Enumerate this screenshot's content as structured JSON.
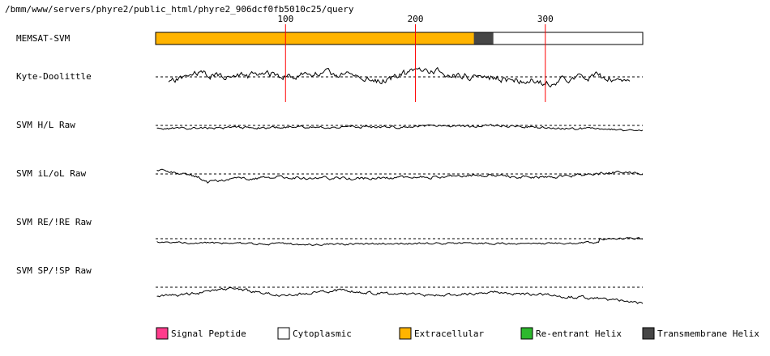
{
  "header": {
    "path": "/bmm/www/servers/phyre2/public_html/phyre2_906dcf0fb5010c25/query"
  },
  "colors": {
    "signal_peptide": "#ff3c8c",
    "cytoplasmic": "#ffffff",
    "extracellular": "#ffb400",
    "reentrant_helix": "#2db82d",
    "transmembrane_helix": "#464646",
    "ruler": "#ff0000",
    "trace": "#000000"
  },
  "chart_data": {
    "type": "line",
    "sequence_length": 375,
    "ticks": [
      100,
      200,
      300
    ],
    "tick_labels": [
      "100",
      "200",
      "300"
    ],
    "memsat": {
      "label": "MEMSAT-SVM",
      "segments": [
        {
          "start": 1,
          "end": 246,
          "type": "extracellular"
        },
        {
          "start": 246,
          "end": 261,
          "type": "transmembrane_helix"
        },
        {
          "start": 261,
          "end": 375,
          "type": "cytoplasmic"
        }
      ]
    },
    "tracks": [
      {
        "label": "Kyte-Doolittle",
        "x_range": [
          10,
          365
        ],
        "seed": 11,
        "amp": 7,
        "bias": 0,
        "points": [
          [
            10,
            8
          ],
          [
            30,
            -4
          ],
          [
            60,
            0
          ],
          [
            90,
            -3
          ],
          [
            100,
            0
          ],
          [
            120,
            -4
          ],
          [
            150,
            -3
          ],
          [
            170,
            6
          ],
          [
            190,
            -3
          ],
          [
            210,
            -8
          ],
          [
            230,
            -2
          ],
          [
            250,
            -1
          ],
          [
            270,
            3
          ],
          [
            290,
            4
          ],
          [
            300,
            8
          ],
          [
            320,
            2
          ],
          [
            340,
            -1
          ],
          [
            360,
            6
          ],
          [
            365,
            2
          ]
        ]
      },
      {
        "label": "SVM H/L Raw",
        "x_range": [
          1,
          375
        ],
        "seed": 23,
        "amp": 2.5,
        "bias": 0,
        "points": [
          [
            1,
            4
          ],
          [
            60,
            3
          ],
          [
            120,
            2
          ],
          [
            180,
            2
          ],
          [
            240,
            1
          ],
          [
            255,
            0
          ],
          [
            300,
            3
          ],
          [
            375,
            6
          ]
        ]
      },
      {
        "label": "SVM iL/oL Raw",
        "x_range": [
          1,
          375
        ],
        "seed": 37,
        "amp": 3,
        "bias": 0,
        "points": [
          [
            1,
            -4
          ],
          [
            30,
            2
          ],
          [
            40,
            10
          ],
          [
            60,
            6
          ],
          [
            100,
            4
          ],
          [
            150,
            6
          ],
          [
            200,
            4
          ],
          [
            250,
            2
          ],
          [
            300,
            4
          ],
          [
            340,
            0
          ],
          [
            360,
            -3
          ],
          [
            375,
            0
          ]
        ]
      },
      {
        "label": "SVM RE/!RE Raw",
        "x_range": [
          1,
          375
        ],
        "seed": 51,
        "amp": 2,
        "bias": 0,
        "points": [
          [
            1,
            4
          ],
          [
            60,
            6
          ],
          [
            120,
            7
          ],
          [
            180,
            6
          ],
          [
            240,
            6
          ],
          [
            300,
            6
          ],
          [
            341,
            5
          ],
          [
            342,
            0
          ],
          [
            375,
            0
          ]
        ]
      },
      {
        "label": "SVM SP/!SP Raw",
        "x_range": [
          1,
          375
        ],
        "seed": 67,
        "amp": 3,
        "bias": 0,
        "points": [
          [
            1,
            12
          ],
          [
            30,
            8
          ],
          [
            60,
            2
          ],
          [
            80,
            6
          ],
          [
            100,
            10
          ],
          [
            140,
            4
          ],
          [
            180,
            8
          ],
          [
            220,
            10
          ],
          [
            260,
            6
          ],
          [
            300,
            10
          ],
          [
            340,
            14
          ],
          [
            375,
            20
          ]
        ]
      }
    ]
  },
  "legend": [
    {
      "label": "Signal Peptide",
      "color_key": "signal_peptide"
    },
    {
      "label": "Cytoplasmic",
      "color_key": "cytoplasmic"
    },
    {
      "label": "Extracellular",
      "color_key": "extracellular"
    },
    {
      "label": "Re-entrant Helix",
      "color_key": "reentrant_helix"
    },
    {
      "label": "Transmembrane Helix",
      "color_key": "transmembrane_helix"
    }
  ]
}
